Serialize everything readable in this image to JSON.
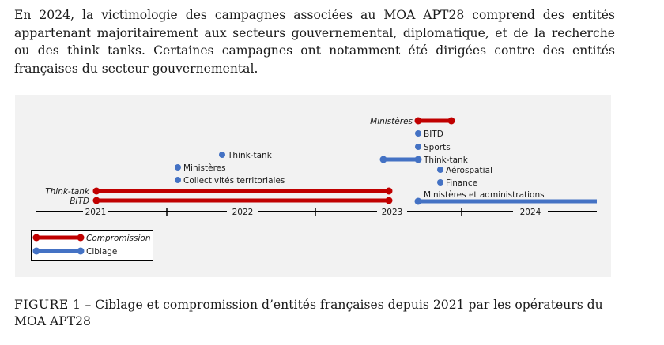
{
  "paragraph": "En 2024, la victimologie des campagnes associées au MOA APT28 comprend des entités appartenant majoritairement aux secteurs gouvernemental, diplomatique, et de la recherche ou des think tanks. Certaines campagnes ont notamment été dirigées contre des entités françaises du secteur gouvernemental.",
  "figure": {
    "caption_label": "FIGURE 1",
    "caption_text": " – Ciblage et compromission d’entités françaises depuis 2021 par les opérateurs du MOA APT28",
    "colors": {
      "compromission": "#c00000",
      "ciblage": "#4472c4",
      "axis": "#000000"
    },
    "legend": [
      {
        "key": "compromission",
        "label": "Compromission"
      },
      {
        "key": "ciblage",
        "label": "Ciblage"
      }
    ],
    "years": [
      "2021",
      "2022",
      "2023",
      "2024"
    ],
    "bars": {
      "thinktank_2021": "Think-tank",
      "bitd_2021": "BITD",
      "ministeres_2023": "Ministères",
      "thinktank_2023": "Think-tank",
      "ministeres_admin_2024": "Ministères et administrations"
    },
    "points": {
      "thinktank_2022": "Think-tank",
      "ministeres_2022": "Ministères",
      "collectivites_2022": "Collectivités territoriales",
      "bitd_2023": "BITD",
      "sports_2023": "Sports",
      "aerospatial_2023": "Aérospatial",
      "finance_2023": "Finance"
    }
  }
}
